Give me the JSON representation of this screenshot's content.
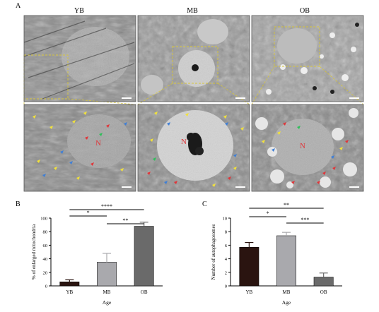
{
  "figure": {
    "panel_a": {
      "letter": "A",
      "columns": [
        "YB",
        "MB",
        "OB"
      ],
      "nucleus_label": "N"
    },
    "panel_b": {
      "letter": "B"
    },
    "panel_c": {
      "letter": "C"
    }
  },
  "colors": {
    "yellow_arrow": "#f2e23a",
    "blue_arrow": "#3f7fd6",
    "red_arrow": "#e0363a",
    "green_arrow": "#2fbf5a",
    "bar_yb": "#2a1410",
    "bar_mb": "#a9a9ad",
    "bar_ob": "#6a6a6a",
    "outline_box": "#d8c63a"
  },
  "chart_data": [
    {
      "type": "bar",
      "categories": [
        "YB",
        "MB",
        "OB"
      ],
      "values": [
        6,
        35,
        88
      ],
      "errors": [
        3,
        13,
        6
      ],
      "xlabel": "Age",
      "ylabel": "% of enlarged mitochondria",
      "ylim": [
        0,
        100
      ],
      "yticks": [
        0,
        20,
        40,
        60,
        80,
        100
      ],
      "significance": [
        {
          "pair": [
            "YB",
            "MB"
          ],
          "label": "*"
        },
        {
          "pair": [
            "YB",
            "OB"
          ],
          "label": "****"
        },
        {
          "pair": [
            "MB",
            "OB"
          ],
          "label": "**"
        }
      ]
    },
    {
      "type": "bar",
      "categories": [
        "YB",
        "MB",
        "OB"
      ],
      "values": [
        5.7,
        7.4,
        1.3
      ],
      "errors": [
        0.7,
        0.5,
        0.6
      ],
      "xlabel": "Age",
      "ylabel": "Number of autophagosomes",
      "ylim": [
        0,
        10
      ],
      "yticks": [
        0,
        2,
        4,
        6,
        8,
        10
      ],
      "significance": [
        {
          "pair": [
            "YB",
            "MB"
          ],
          "label": "*"
        },
        {
          "pair": [
            "YB",
            "OB"
          ],
          "label": "**"
        },
        {
          "pair": [
            "MB",
            "OB"
          ],
          "label": "***"
        }
      ]
    }
  ]
}
